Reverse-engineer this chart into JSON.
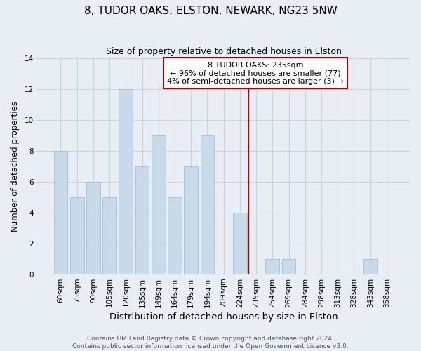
{
  "title": "8, TUDOR OAKS, ELSTON, NEWARK, NG23 5NW",
  "subtitle": "Size of property relative to detached houses in Elston",
  "xlabel": "Distribution of detached houses by size in Elston",
  "ylabel": "Number of detached properties",
  "categories": [
    "60sqm",
    "75sqm",
    "90sqm",
    "105sqm",
    "120sqm",
    "135sqm",
    "149sqm",
    "164sqm",
    "179sqm",
    "194sqm",
    "209sqm",
    "224sqm",
    "239sqm",
    "254sqm",
    "269sqm",
    "284sqm",
    "298sqm",
    "313sqm",
    "328sqm",
    "343sqm",
    "358sqm"
  ],
  "values": [
    8,
    5,
    6,
    5,
    12,
    7,
    9,
    5,
    7,
    9,
    0,
    4,
    0,
    1,
    1,
    0,
    0,
    0,
    0,
    1,
    0
  ],
  "bar_color": "#c9daea",
  "bar_edge_color": "#a8c4d8",
  "ylim": [
    0,
    14
  ],
  "yticks": [
    0,
    2,
    4,
    6,
    8,
    10,
    12,
    14
  ],
  "reference_line_x": 11.5,
  "reference_line_color": "#aa0000",
  "annotation_text_line1": "8 TUDOR OAKS: 235sqm",
  "annotation_text_line2": "← 96% of detached houses are smaller (77)",
  "annotation_text_line3": "4% of semi-detached houses are larger (3) →",
  "footer_line1": "Contains HM Land Registry data © Crown copyright and database right 2024.",
  "footer_line2": "Contains public sector information licensed under the Open Government Licence v3.0.",
  "background_color": "#e8eef4",
  "plot_bg_color": "#e8eef4",
  "grid_color": "#c8d4e0",
  "title_fontsize": 11,
  "subtitle_fontsize": 9,
  "xlabel_fontsize": 9.5,
  "ylabel_fontsize": 8.5,
  "tick_fontsize": 7.5,
  "annotation_fontsize": 8,
  "footer_fontsize": 6.5
}
